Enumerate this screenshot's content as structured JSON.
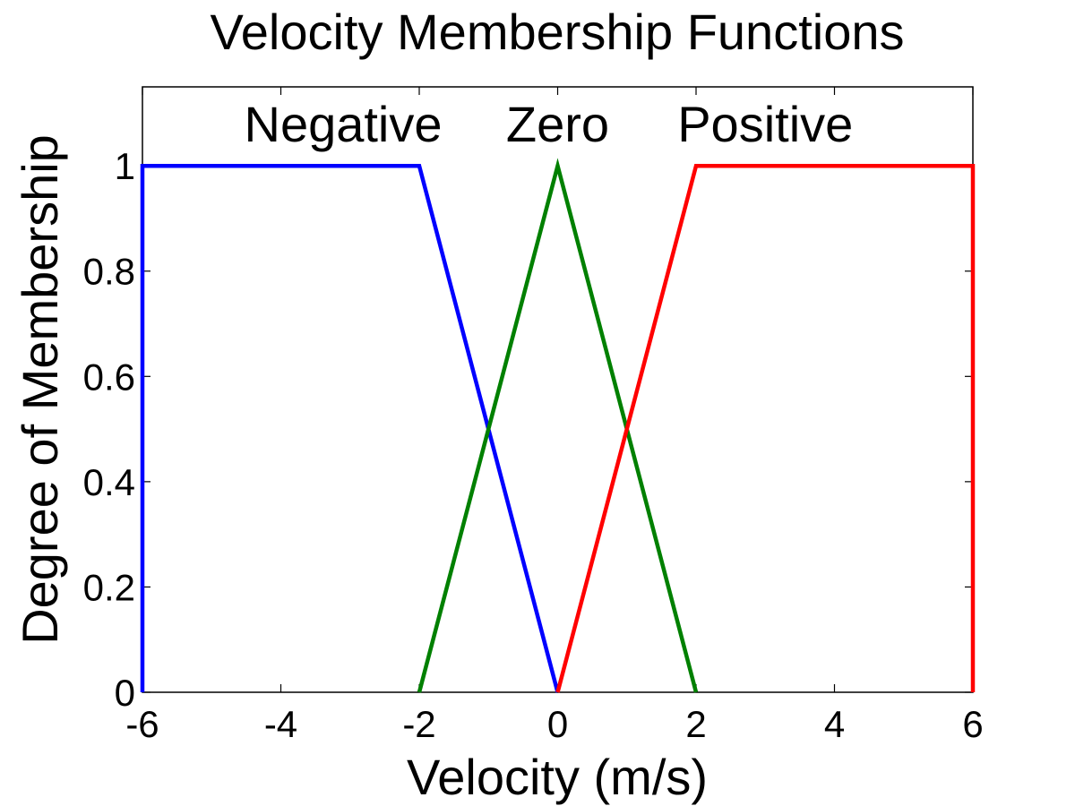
{
  "chart_data": {
    "type": "line",
    "title": "Velocity Membership Functions",
    "xlabel": "Velocity (m/s)",
    "ylabel": "Degree of Membership",
    "xlim": [
      -6,
      6
    ],
    "ylim": [
      0,
      1.15
    ],
    "xticks": [
      -6,
      -4,
      -2,
      0,
      2,
      4,
      6
    ],
    "xtick_labels": [
      "-6",
      "-4",
      "-2",
      "0",
      "2",
      "4",
      "6"
    ],
    "yticks": [
      0,
      0.2,
      0.4,
      0.6,
      0.8,
      1
    ],
    "ytick_labels": [
      "0",
      "0.2",
      "0.4",
      "0.6",
      "0.8",
      "1"
    ],
    "grid": false,
    "series": [
      {
        "name": "Negative",
        "color": "#0000ff",
        "x": [
          -6,
          -6,
          -2,
          0
        ],
        "y": [
          0,
          1,
          1,
          0
        ]
      },
      {
        "name": "Zero",
        "color": "#008000",
        "x": [
          -2,
          0,
          2
        ],
        "y": [
          0,
          1,
          0
        ]
      },
      {
        "name": "Positive",
        "color": "#ff0000",
        "x": [
          0,
          2,
          6,
          6
        ],
        "y": [
          0,
          1,
          1,
          0
        ]
      }
    ],
    "annotations": [
      {
        "text": "Negative",
        "x": -3.1,
        "y": 1.08
      },
      {
        "text": "Zero",
        "x": 0,
        "y": 1.08
      },
      {
        "text": "Positive",
        "x": 3.0,
        "y": 1.08
      }
    ]
  }
}
